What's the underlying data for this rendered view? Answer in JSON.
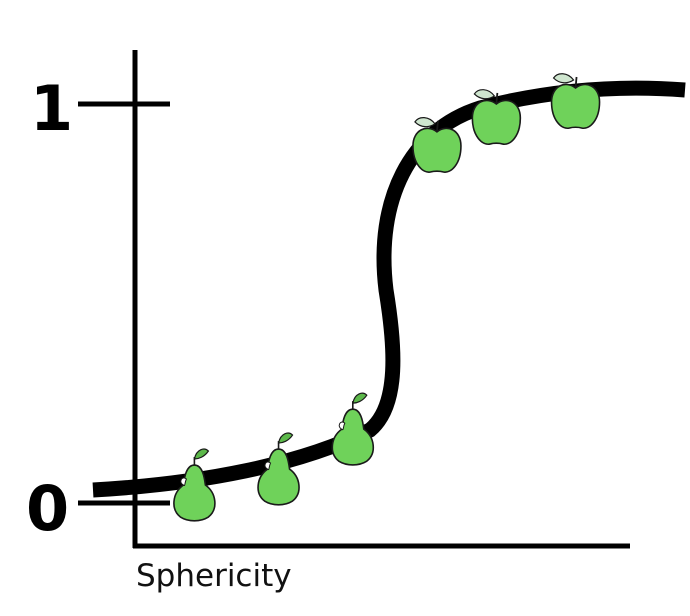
{
  "chart_data": {
    "type": "scatter",
    "title": "",
    "xlabel": "Sphericity",
    "ylabel": "",
    "y_ticks": [
      {
        "value": 0,
        "label": "0"
      },
      {
        "value": 1,
        "label": "1"
      }
    ],
    "ylim": [
      -0.08,
      1.05
    ],
    "xlim": [
      0,
      10
    ],
    "grid": false,
    "legend": "none",
    "curve": "logistic",
    "series": [
      {
        "icon": "pear-icon",
        "color": "#6fd25a",
        "points": [
          {
            "x": 1.2,
            "y": 0.02
          },
          {
            "x": 2.9,
            "y": 0.06
          },
          {
            "x": 4.4,
            "y": 0.16
          }
        ]
      },
      {
        "icon": "apple-icon",
        "color": "#6fd25a",
        "points": [
          {
            "x": 6.1,
            "y": 0.89
          },
          {
            "x": 7.3,
            "y": 0.96
          },
          {
            "x": 8.9,
            "y": 1.0
          }
        ]
      }
    ]
  }
}
